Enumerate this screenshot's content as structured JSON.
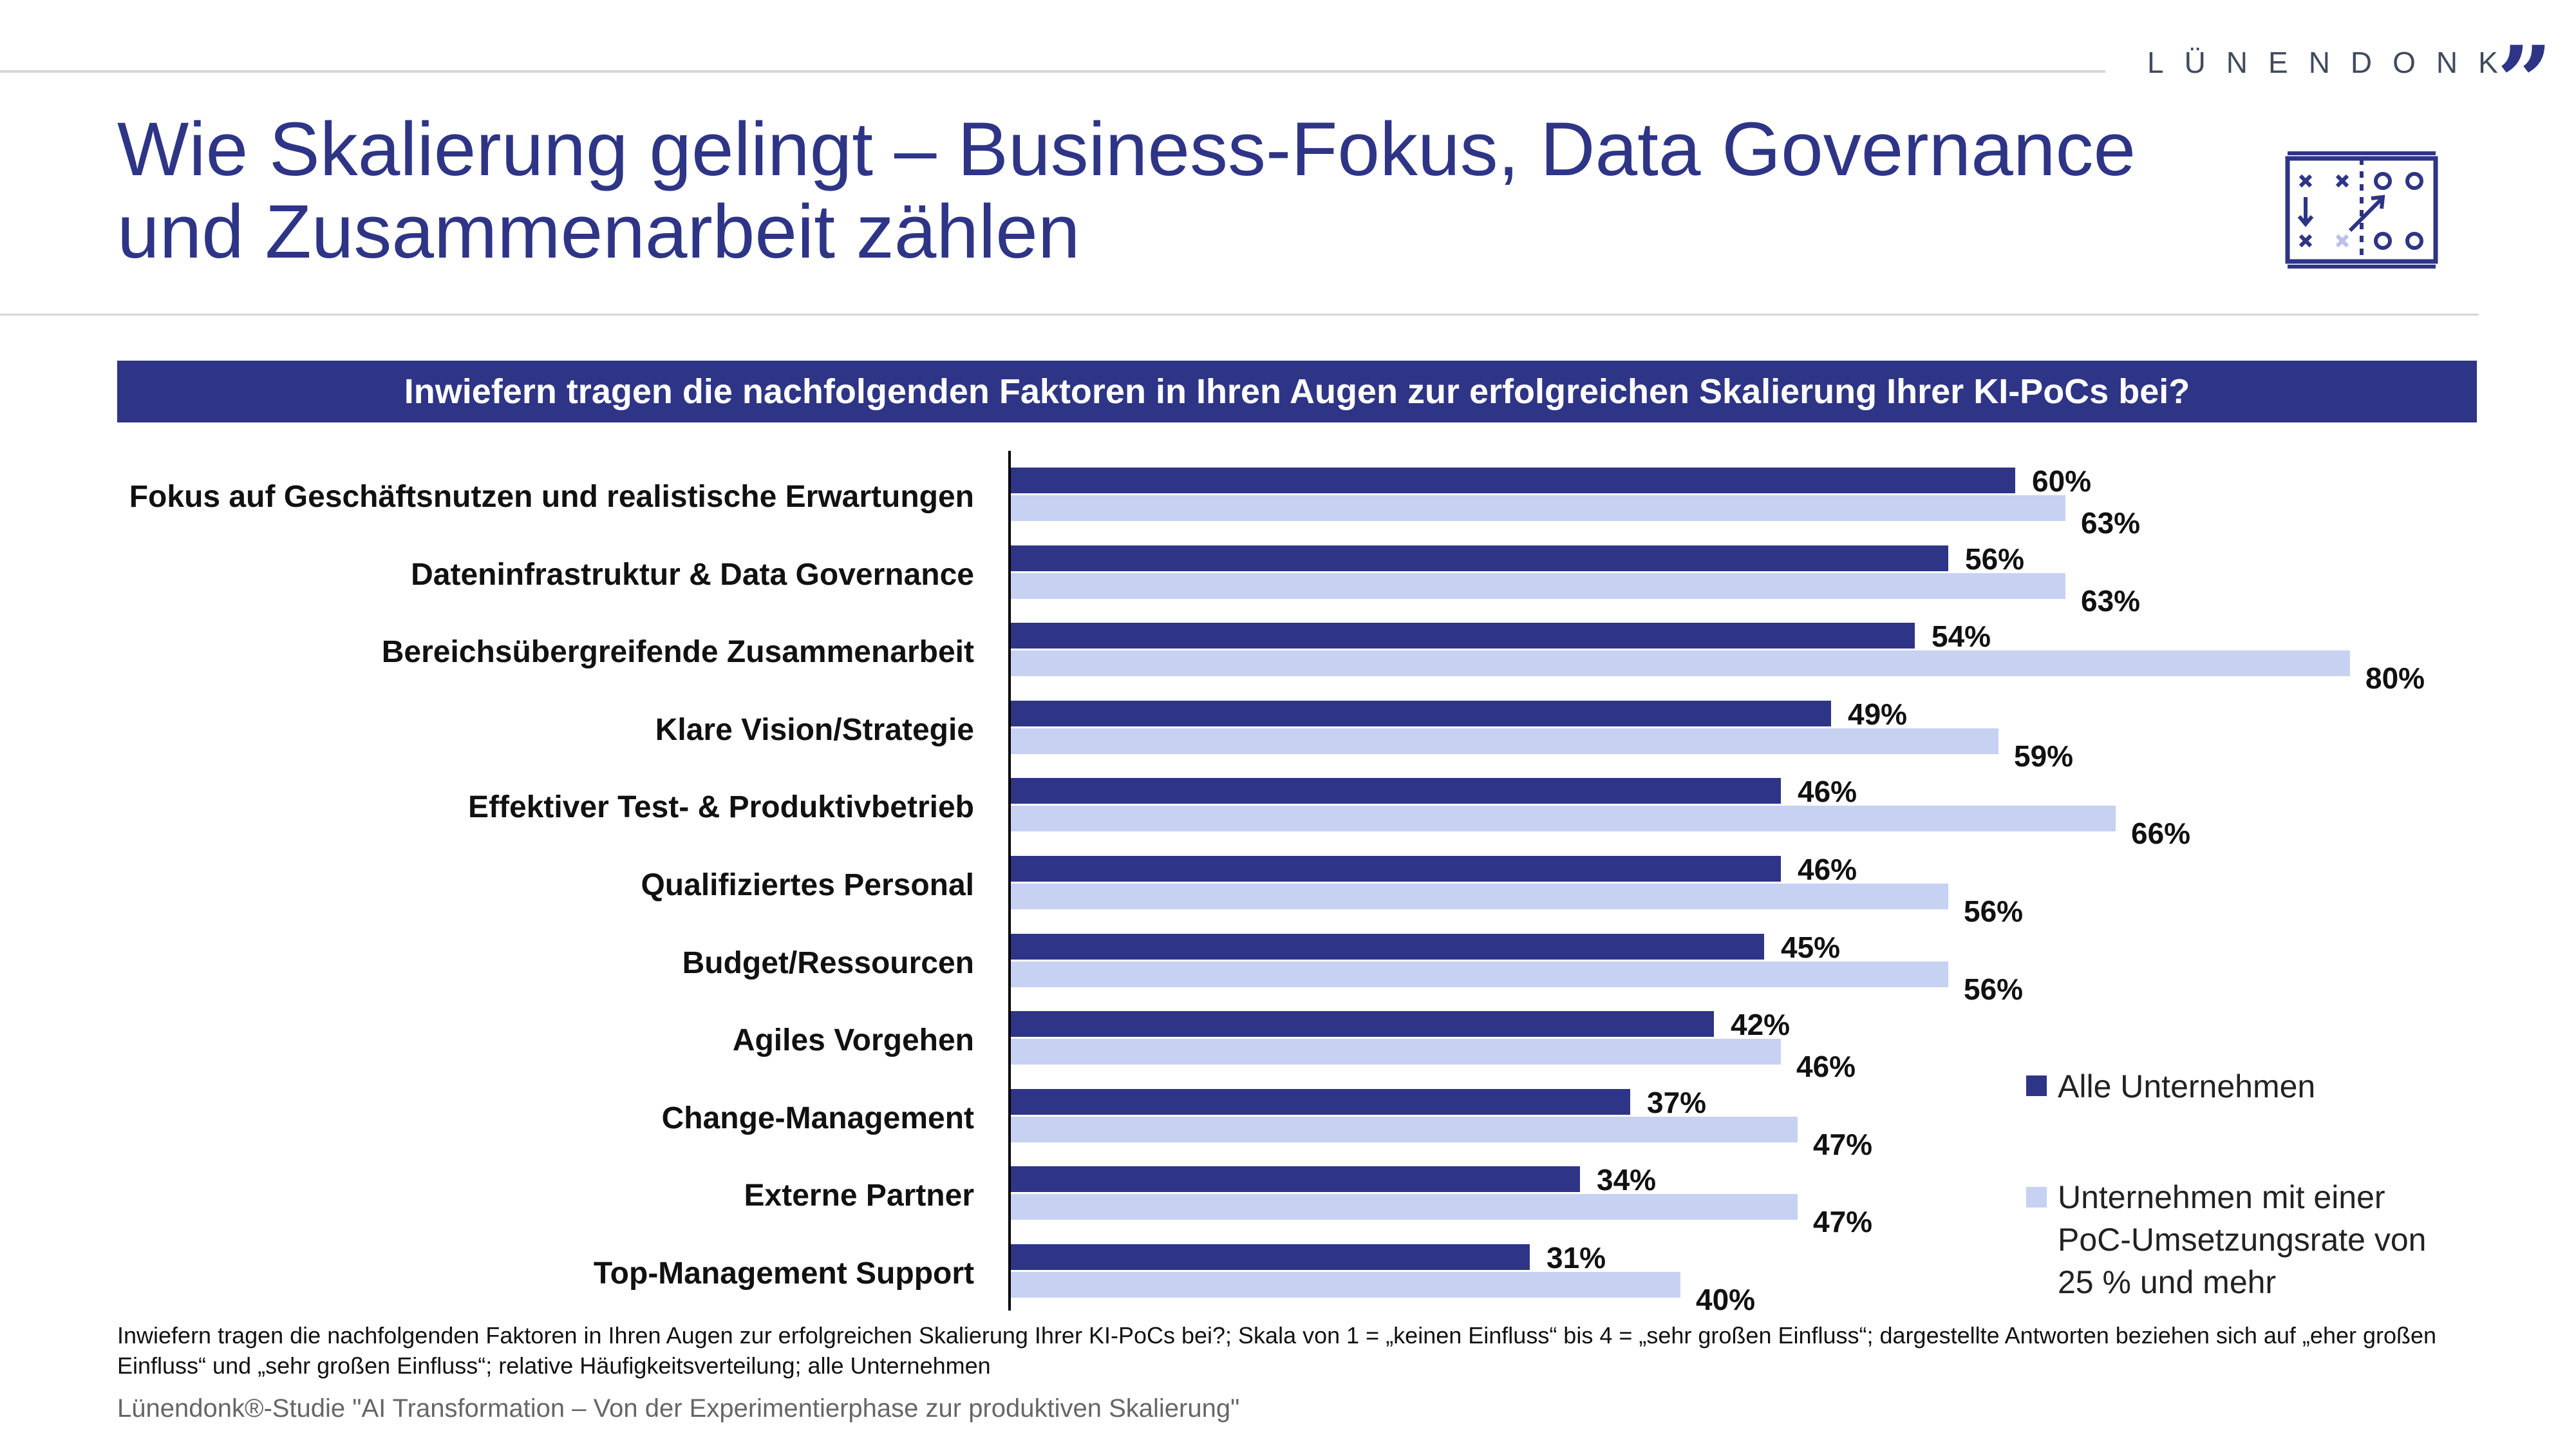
{
  "brand": {
    "name": "LÜNENDONK",
    "mark": "”",
    "color": "#2e3586"
  },
  "title": "Wie Skalierung gelingt – Business-Fokus, Data Governance und Zusammenarbeit zählen",
  "question": "Inwiefern tragen die nachfolgenden Faktoren in Ihren Augen zur erfolgreichen Skalierung Ihrer KI-PoCs bei?",
  "icon": "tactics-board-icon",
  "chart_data": {
    "type": "bar",
    "orientation": "horizontal",
    "categories": [
      "Fokus auf Geschäftsnutzen und realistische Erwartungen",
      "Dateninfrastruktur & Data Governance",
      "Bereichsübergreifende Zusammenarbeit",
      "Klare Vision/Strategie",
      "Effektiver Test- & Produktivbetrieb",
      "Qualifiziertes Personal",
      "Budget/Ressourcen",
      "Agiles Vorgehen",
      "Change-Management",
      "Externe Partner",
      "Top-Management Support"
    ],
    "series": [
      {
        "name": "Alle Unternehmen",
        "color": "#2e3586",
        "values": [
          60,
          56,
          54,
          49,
          46,
          46,
          45,
          42,
          37,
          34,
          31
        ]
      },
      {
        "name": "Unternehmen mit einer PoC-Umsetzungsrate von 25 % und mehr",
        "color": "#c7d1f2",
        "values": [
          63,
          63,
          80,
          59,
          66,
          56,
          56,
          46,
          47,
          47,
          40
        ]
      }
    ],
    "value_suffix": "%",
    "xlim": [
      0,
      100
    ],
    "legend_position": "bottom-right",
    "grid": false
  },
  "legend": {
    "dark": "Alle Unternehmen",
    "light": "Unternehmen mit einer\nPoC-Umsetzungsrate von\n25 % und mehr"
  },
  "footnote": "Inwiefern tragen die nachfolgenden Faktoren in Ihren Augen zur erfolgreichen Skalierung Ihrer KI-PoCs bei?; Skala von 1 = „keinen Einfluss“ bis 4 = „sehr großen Einfluss“; dargestellte Antworten beziehen sich auf „eher großen Einfluss“ und „sehr großen Einfluss“; relative Häufigkeitsverteilung; alle Unternehmen",
  "source": "Lünendonk®-Studie \"AI Transformation – Von der Experimentierphase zur produktiven Skalierung\""
}
